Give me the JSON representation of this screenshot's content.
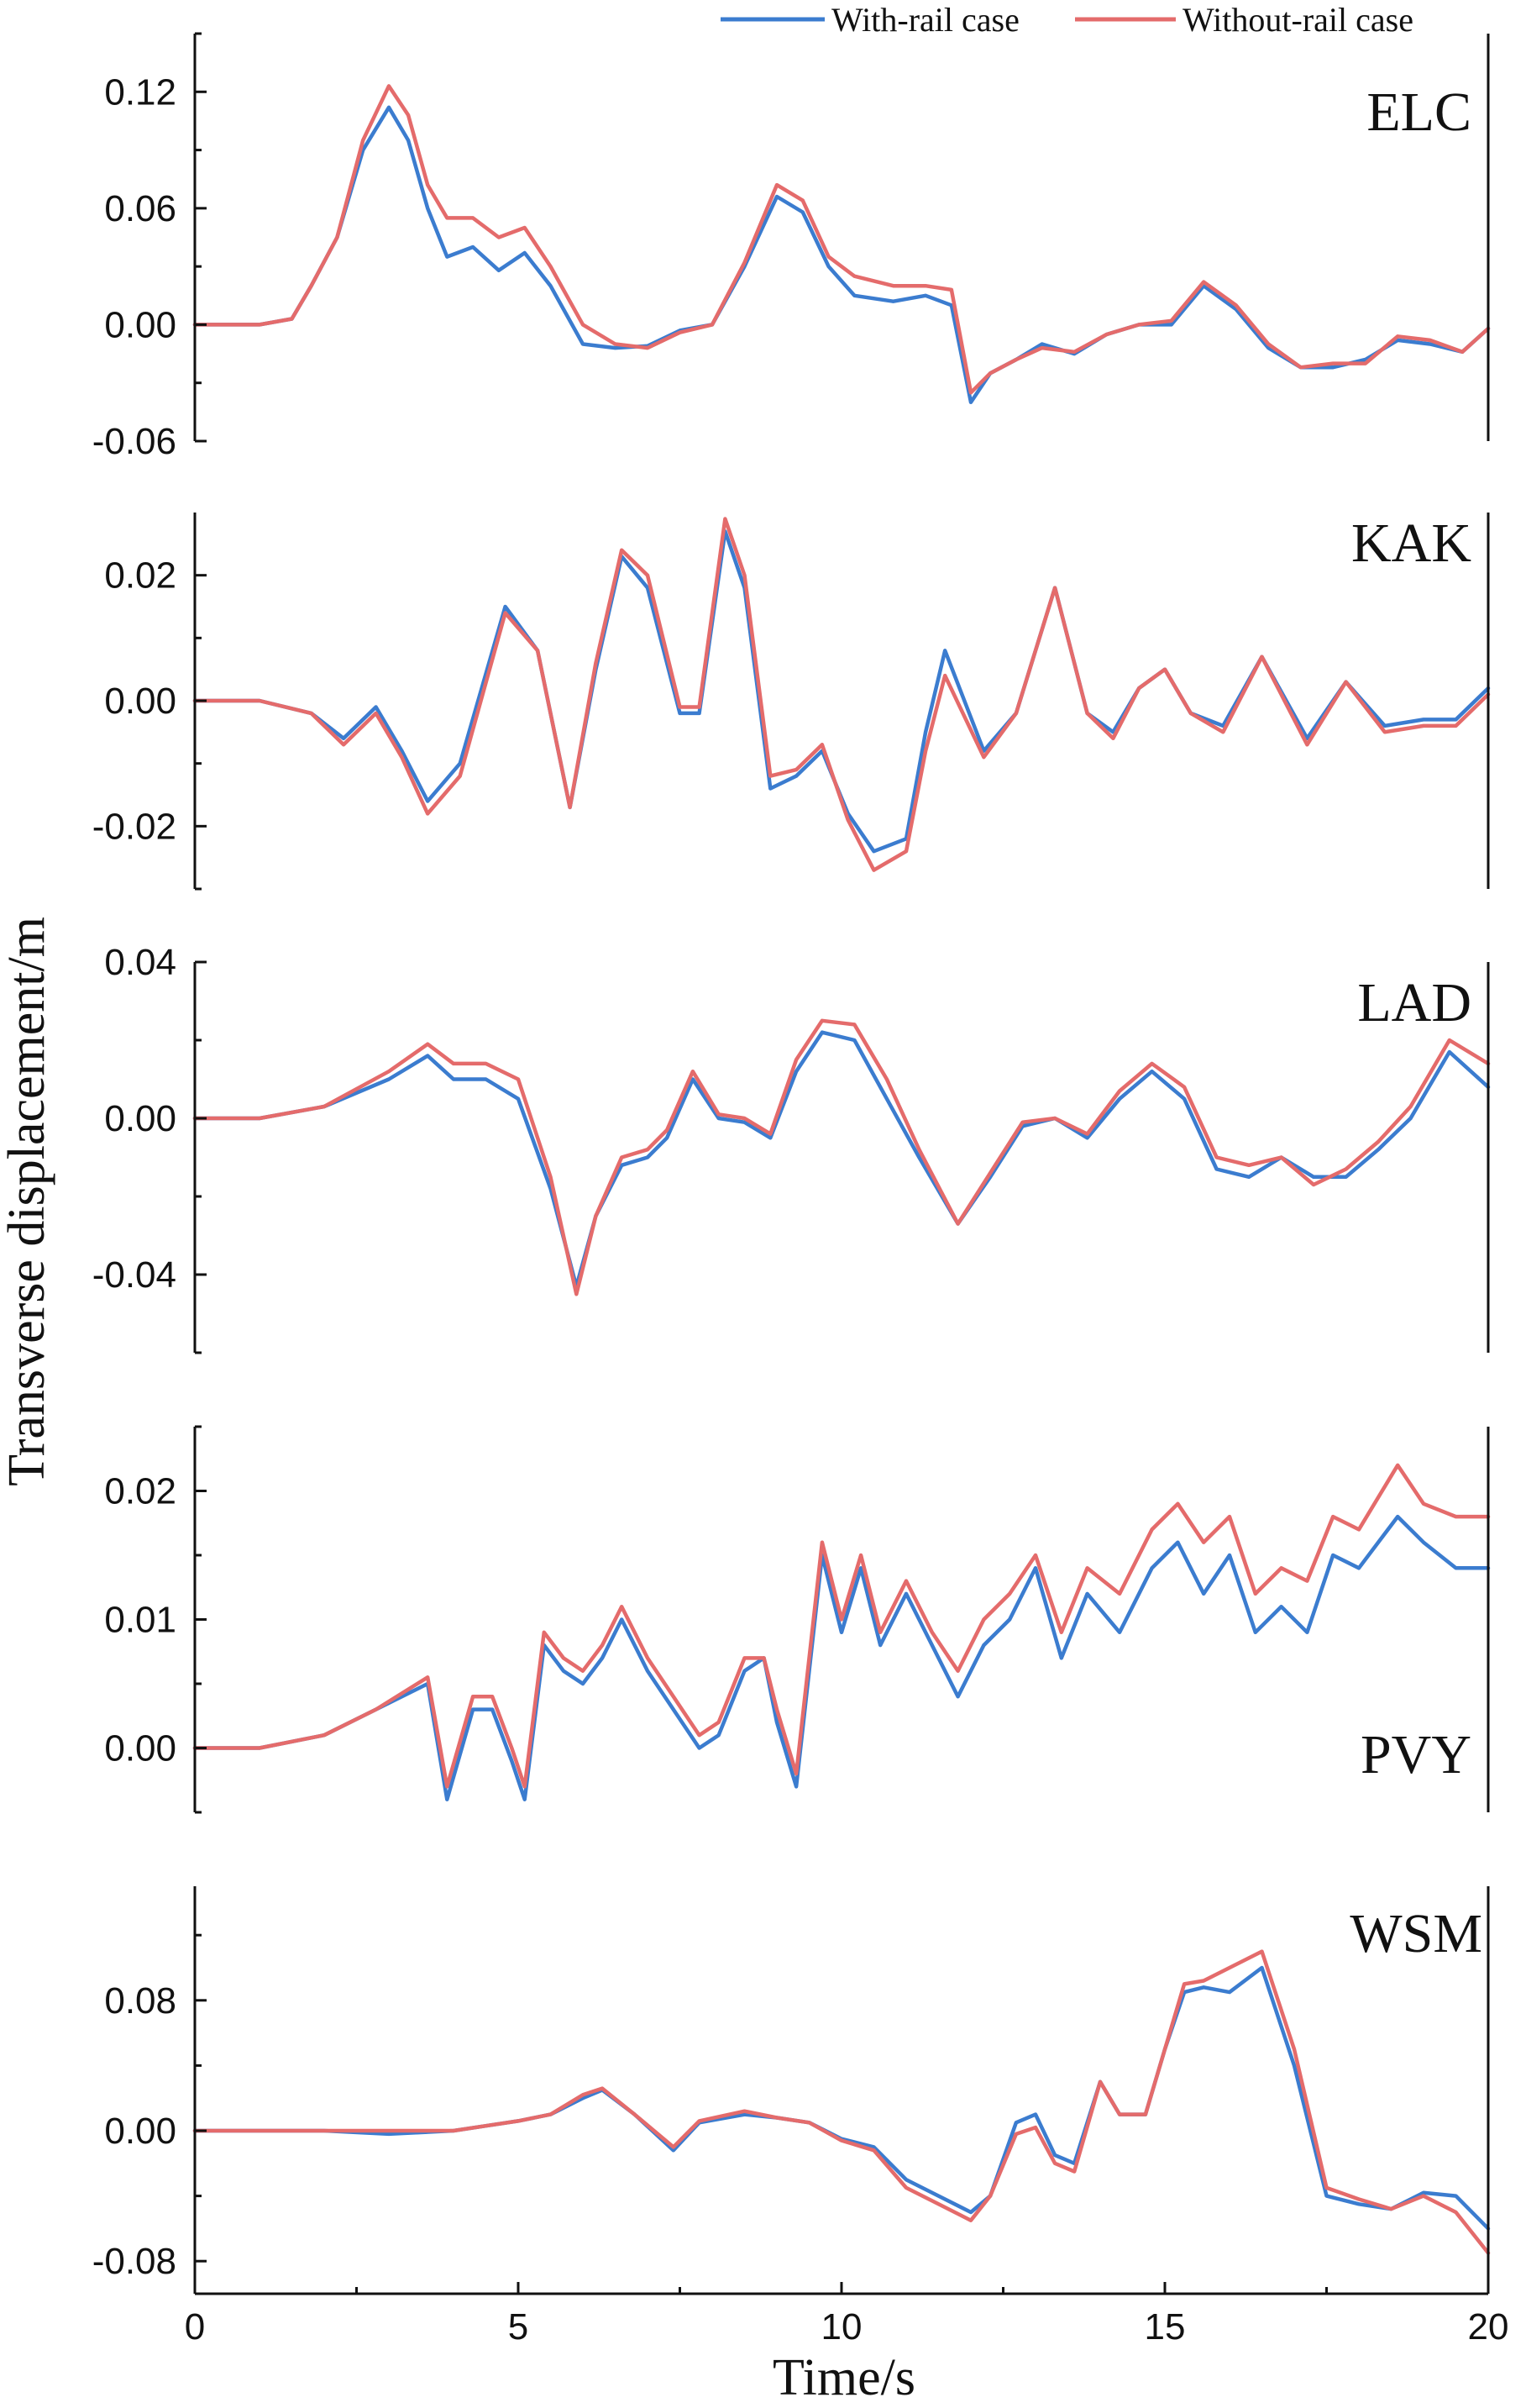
{
  "figure": {
    "ylabel": "Transverse displacement/m",
    "xlabel": "Time/s"
  },
  "legend": {
    "position": "top-right",
    "items": [
      {
        "name": "With-rail case",
        "color": "#3b7ccf"
      },
      {
        "name": "Without-rail case",
        "color": "#e46b6b"
      }
    ]
  },
  "colors": {
    "with_rail": "#3b7ccf",
    "without_rail": "#e46b6b",
    "axis": "#111111"
  },
  "chart_data": [
    {
      "type": "line",
      "panel": "ELC",
      "xlim": [
        0,
        20
      ],
      "ylim": [
        -0.06,
        0.15
      ],
      "xticks": [
        0,
        5,
        10,
        15,
        20
      ],
      "yticks": [
        -0.06,
        0.0,
        0.06,
        0.12
      ],
      "ytick_labels": [
        "-0.06",
        "0.00",
        "0.06",
        "0.12"
      ],
      "series": [
        {
          "name": "With-rail case",
          "x": [
            0,
            1,
            1.5,
            1.8,
            2.2,
            2.6,
            3.0,
            3.3,
            3.6,
            3.9,
            4.3,
            4.7,
            5.1,
            5.5,
            6.0,
            6.5,
            7.0,
            7.5,
            8.0,
            8.5,
            9.0,
            9.4,
            9.8,
            10.2,
            10.8,
            11.3,
            11.7,
            12.0,
            12.3,
            12.7,
            13.1,
            13.6,
            14.1,
            14.6,
            15.1,
            15.6,
            16.1,
            16.6,
            17.1,
            17.6,
            18.1,
            18.6,
            19.1,
            19.6,
            20
          ],
          "values": [
            0,
            0,
            0.003,
            0.02,
            0.045,
            0.09,
            0.112,
            0.095,
            0.06,
            0.035,
            0.04,
            0.028,
            0.037,
            0.02,
            -0.01,
            -0.012,
            -0.011,
            -0.003,
            0,
            0.03,
            0.066,
            0.058,
            0.03,
            0.015,
            0.012,
            0.015,
            0.01,
            -0.04,
            -0.025,
            -0.018,
            -0.01,
            -0.015,
            -0.005,
            0,
            0,
            0.02,
            0.008,
            -0.012,
            -0.022,
            -0.022,
            -0.018,
            -0.008,
            -0.01,
            -0.014,
            -0.002
          ]
        },
        {
          "name": "Without-rail case",
          "x": [
            0,
            1,
            1.5,
            1.8,
            2.2,
            2.6,
            3.0,
            3.3,
            3.6,
            3.9,
            4.3,
            4.7,
            5.1,
            5.5,
            6.0,
            6.5,
            7.0,
            7.5,
            8.0,
            8.5,
            9.0,
            9.4,
            9.8,
            10.2,
            10.8,
            11.3,
            11.7,
            12.0,
            12.3,
            12.7,
            13.1,
            13.6,
            14.1,
            14.6,
            15.1,
            15.6,
            16.1,
            16.6,
            17.1,
            17.6,
            18.1,
            18.6,
            19.1,
            19.6,
            20
          ],
          "values": [
            0,
            0,
            0.003,
            0.02,
            0.045,
            0.095,
            0.123,
            0.108,
            0.072,
            0.055,
            0.055,
            0.045,
            0.05,
            0.03,
            0,
            -0.01,
            -0.012,
            -0.004,
            0,
            0.032,
            0.072,
            0.064,
            0.035,
            0.025,
            0.02,
            0.02,
            0.018,
            -0.035,
            -0.025,
            -0.018,
            -0.012,
            -0.014,
            -0.005,
            0,
            0.002,
            0.022,
            0.01,
            -0.01,
            -0.022,
            -0.02,
            -0.02,
            -0.006,
            -0.008,
            -0.014,
            -0.002
          ]
        }
      ]
    },
    {
      "type": "line",
      "panel": "KAK",
      "xlim": [
        0,
        20
      ],
      "ylim": [
        -0.03,
        0.03
      ],
      "xticks": [
        0,
        5,
        10,
        15,
        20
      ],
      "yticks": [
        -0.02,
        0.0,
        0.02
      ],
      "ytick_labels": [
        "-0.02",
        "0.00",
        "0.02"
      ],
      "series": [
        {
          "name": "With-rail case",
          "x": [
            0,
            1,
            1.8,
            2.3,
            2.8,
            3.2,
            3.6,
            4.1,
            4.8,
            5.3,
            5.8,
            6.2,
            6.6,
            7.0,
            7.5,
            7.8,
            8.2,
            8.5,
            8.9,
            9.3,
            9.7,
            10.1,
            10.5,
            11.0,
            11.3,
            11.6,
            12.2,
            12.7,
            13.3,
            13.8,
            14.2,
            14.6,
            15.0,
            15.4,
            15.9,
            16.5,
            17.2,
            17.8,
            18.4,
            19.0,
            19.5,
            20
          ],
          "values": [
            0,
            0,
            -0.002,
            -0.006,
            -0.001,
            -0.008,
            -0.016,
            -0.01,
            0.015,
            0.008,
            -0.017,
            0.005,
            0.023,
            0.018,
            -0.002,
            -0.002,
            0.027,
            0.018,
            -0.014,
            -0.012,
            -0.008,
            -0.018,
            -0.024,
            -0.022,
            -0.005,
            0.008,
            -0.008,
            -0.002,
            0.018,
            -0.002,
            -0.005,
            0.002,
            0.005,
            -0.002,
            -0.004,
            0.007,
            -0.006,
            0.003,
            -0.004,
            -0.003,
            -0.003,
            0.002
          ]
        },
        {
          "name": "Without-rail case",
          "x": [
            0,
            1,
            1.8,
            2.3,
            2.8,
            3.2,
            3.6,
            4.1,
            4.8,
            5.3,
            5.8,
            6.2,
            6.6,
            7.0,
            7.5,
            7.8,
            8.2,
            8.5,
            8.9,
            9.3,
            9.7,
            10.1,
            10.5,
            11.0,
            11.3,
            11.6,
            12.2,
            12.7,
            13.3,
            13.8,
            14.2,
            14.6,
            15.0,
            15.4,
            15.9,
            16.5,
            17.2,
            17.8,
            18.4,
            19.0,
            19.5,
            20
          ],
          "values": [
            0,
            0,
            -0.002,
            -0.007,
            -0.002,
            -0.009,
            -0.018,
            -0.012,
            0.014,
            0.008,
            -0.017,
            0.006,
            0.024,
            0.02,
            -0.001,
            -0.001,
            0.029,
            0.02,
            -0.012,
            -0.011,
            -0.007,
            -0.019,
            -0.027,
            -0.024,
            -0.008,
            0.004,
            -0.009,
            -0.002,
            0.018,
            -0.002,
            -0.006,
            0.002,
            0.005,
            -0.002,
            -0.005,
            0.007,
            -0.007,
            0.003,
            -0.005,
            -0.004,
            -0.004,
            0.001
          ]
        }
      ]
    },
    {
      "type": "line",
      "panel": "LAD",
      "xlim": [
        0,
        20
      ],
      "ylim": [
        -0.06,
        0.04
      ],
      "xticks": [
        0,
        5,
        10,
        15,
        20
      ],
      "yticks": [
        -0.04,
        0.0,
        0.04
      ],
      "ytick_labels": [
        "-0.04",
        "0.00",
        "0.04"
      ],
      "series": [
        {
          "name": "With-rail case",
          "x": [
            0,
            1,
            2,
            3,
            3.6,
            4.0,
            4.5,
            5.0,
            5.5,
            5.9,
            6.2,
            6.6,
            7.0,
            7.3,
            7.7,
            8.1,
            8.5,
            8.9,
            9.3,
            9.7,
            10.2,
            10.7,
            11.2,
            11.8,
            12.3,
            12.8,
            13.3,
            13.8,
            14.3,
            14.8,
            15.3,
            15.8,
            16.3,
            16.8,
            17.3,
            17.8,
            18.3,
            18.8,
            19.4,
            20
          ],
          "values": [
            0,
            0,
            0.003,
            0.01,
            0.016,
            0.01,
            0.01,
            0.005,
            -0.018,
            -0.043,
            -0.025,
            -0.012,
            -0.01,
            -0.005,
            0.01,
            0,
            -0.001,
            -0.005,
            0.012,
            0.022,
            0.02,
            0.005,
            -0.01,
            -0.027,
            -0.015,
            -0.002,
            0,
            -0.005,
            0.005,
            0.012,
            0.005,
            -0.013,
            -0.015,
            -0.01,
            -0.015,
            -0.015,
            -0.008,
            0,
            0.017,
            0.008
          ]
        },
        {
          "name": "Without-rail case",
          "x": [
            0,
            1,
            2,
            3,
            3.6,
            4.0,
            4.5,
            5.0,
            5.5,
            5.9,
            6.2,
            6.6,
            7.0,
            7.3,
            7.7,
            8.1,
            8.5,
            8.9,
            9.3,
            9.7,
            10.2,
            10.7,
            11.2,
            11.8,
            12.3,
            12.8,
            13.3,
            13.8,
            14.3,
            14.8,
            15.3,
            15.8,
            16.3,
            16.8,
            17.3,
            17.8,
            18.3,
            18.8,
            19.4,
            20
          ],
          "values": [
            0,
            0,
            0.003,
            0.012,
            0.019,
            0.014,
            0.014,
            0.01,
            -0.015,
            -0.045,
            -0.025,
            -0.01,
            -0.008,
            -0.003,
            0.012,
            0.001,
            0,
            -0.004,
            0.015,
            0.025,
            0.024,
            0.01,
            -0.008,
            -0.027,
            -0.014,
            -0.001,
            0,
            -0.004,
            0.007,
            0.014,
            0.008,
            -0.01,
            -0.012,
            -0.01,
            -0.017,
            -0.013,
            -0.006,
            0.003,
            0.02,
            0.014
          ]
        }
      ]
    },
    {
      "type": "line",
      "panel": "PVY",
      "xlim": [
        0,
        20
      ],
      "ylim": [
        -0.005,
        0.025
      ],
      "xticks": [
        0,
        5,
        10,
        15,
        20
      ],
      "yticks": [
        0.0,
        0.01,
        0.02
      ],
      "ytick_labels": [
        "0.00",
        "0.01",
        "0.02"
      ],
      "series": [
        {
          "name": "With-rail case",
          "x": [
            0,
            1,
            2,
            2.8,
            3.6,
            3.9,
            4.3,
            4.6,
            4.9,
            5.1,
            5.4,
            5.7,
            6.0,
            6.3,
            6.6,
            7.0,
            7.4,
            7.8,
            8.1,
            8.5,
            8.8,
            9.0,
            9.3,
            9.7,
            10.0,
            10.3,
            10.6,
            11.0,
            11.4,
            11.8,
            12.2,
            12.6,
            13.0,
            13.4,
            13.8,
            14.3,
            14.8,
            15.2,
            15.6,
            16.0,
            16.4,
            16.8,
            17.2,
            17.6,
            18.0,
            18.6,
            19.0,
            19.5,
            20
          ],
          "values": [
            0,
            0,
            0.001,
            0.003,
            0.005,
            -0.004,
            0.003,
            0.003,
            -0.001,
            -0.004,
            0.008,
            0.006,
            0.005,
            0.007,
            0.01,
            0.006,
            0.003,
            0,
            0.001,
            0.006,
            0.007,
            0.002,
            -0.003,
            0.015,
            0.009,
            0.014,
            0.008,
            0.012,
            0.008,
            0.004,
            0.008,
            0.01,
            0.014,
            0.007,
            0.012,
            0.009,
            0.014,
            0.016,
            0.012,
            0.015,
            0.009,
            0.011,
            0.009,
            0.015,
            0.014,
            0.018,
            0.016,
            0.014,
            0.014
          ]
        },
        {
          "name": "Without-rail case",
          "x": [
            0,
            1,
            2,
            2.8,
            3.6,
            3.9,
            4.3,
            4.6,
            4.9,
            5.1,
            5.4,
            5.7,
            6.0,
            6.3,
            6.6,
            7.0,
            7.4,
            7.8,
            8.1,
            8.5,
            8.8,
            9.0,
            9.3,
            9.7,
            10.0,
            10.3,
            10.6,
            11.0,
            11.4,
            11.8,
            12.2,
            12.6,
            13.0,
            13.4,
            13.8,
            14.3,
            14.8,
            15.2,
            15.6,
            16.0,
            16.4,
            16.8,
            17.2,
            17.6,
            18.0,
            18.6,
            19.0,
            19.5,
            20
          ],
          "values": [
            0,
            0,
            0.001,
            0.003,
            0.0055,
            -0.003,
            0.004,
            0.004,
            0,
            -0.003,
            0.009,
            0.007,
            0.006,
            0.008,
            0.011,
            0.007,
            0.004,
            0.001,
            0.002,
            0.007,
            0.007,
            0.003,
            -0.002,
            0.016,
            0.01,
            0.015,
            0.009,
            0.013,
            0.009,
            0.006,
            0.01,
            0.012,
            0.015,
            0.009,
            0.014,
            0.012,
            0.017,
            0.019,
            0.016,
            0.018,
            0.012,
            0.014,
            0.013,
            0.018,
            0.017,
            0.022,
            0.019,
            0.018,
            0.018
          ]
        }
      ]
    },
    {
      "type": "line",
      "panel": "WSM",
      "xlim": [
        0,
        20
      ],
      "ylim": [
        -0.1,
        0.15
      ],
      "xticks": [
        0,
        5,
        10,
        15,
        20
      ],
      "xtick_labels": [
        "0",
        "5",
        "10",
        "15",
        "20"
      ],
      "yticks": [
        -0.08,
        0.0,
        0.08
      ],
      "ytick_labels": [
        "-0.08",
        "0.00",
        "0.08"
      ],
      "series": [
        {
          "name": "With-rail case",
          "x": [
            0,
            2,
            3,
            4,
            4.5,
            5.0,
            5.5,
            6.0,
            6.3,
            6.8,
            7.4,
            7.8,
            8.5,
            9.0,
            9.5,
            10.0,
            10.5,
            11.0,
            11.5,
            12.0,
            12.3,
            12.7,
            13.0,
            13.3,
            13.6,
            14.0,
            14.3,
            14.7,
            15.0,
            15.3,
            15.6,
            16.0,
            16.5,
            17.0,
            17.5,
            18.0,
            18.5,
            19.0,
            19.5,
            20
          ],
          "values": [
            0,
            0,
            -0.002,
            0,
            0.003,
            0.006,
            0.01,
            0.02,
            0.025,
            0.01,
            -0.012,
            0.005,
            0.01,
            0.008,
            0.005,
            -0.005,
            -0.01,
            -0.03,
            -0.04,
            -0.05,
            -0.04,
            0.005,
            0.01,
            -0.015,
            -0.02,
            0.03,
            0.01,
            0.01,
            0.05,
            0.085,
            0.088,
            0.085,
            0.1,
            0.04,
            -0.04,
            -0.045,
            -0.048,
            -0.038,
            -0.04,
            -0.06
          ]
        },
        {
          "name": "Without-rail case",
          "x": [
            0,
            2,
            3,
            4,
            4.5,
            5.0,
            5.5,
            6.0,
            6.3,
            6.8,
            7.4,
            7.8,
            8.5,
            9.0,
            9.5,
            10.0,
            10.5,
            11.0,
            11.5,
            12.0,
            12.3,
            12.7,
            13.0,
            13.3,
            13.6,
            14.0,
            14.3,
            14.7,
            15.0,
            15.3,
            15.6,
            16.0,
            16.5,
            17.0,
            17.5,
            18.0,
            18.5,
            19.0,
            19.5,
            20
          ],
          "values": [
            0,
            0,
            0,
            0,
            0.003,
            0.006,
            0.01,
            0.022,
            0.026,
            0.01,
            -0.01,
            0.006,
            0.012,
            0.008,
            0.005,
            -0.006,
            -0.012,
            -0.035,
            -0.045,
            -0.055,
            -0.04,
            -0.002,
            0.002,
            -0.02,
            -0.025,
            0.03,
            0.01,
            0.01,
            0.05,
            0.09,
            0.092,
            0.1,
            0.11,
            0.05,
            -0.035,
            -0.042,
            -0.048,
            -0.04,
            -0.05,
            -0.075
          ]
        }
      ]
    }
  ]
}
